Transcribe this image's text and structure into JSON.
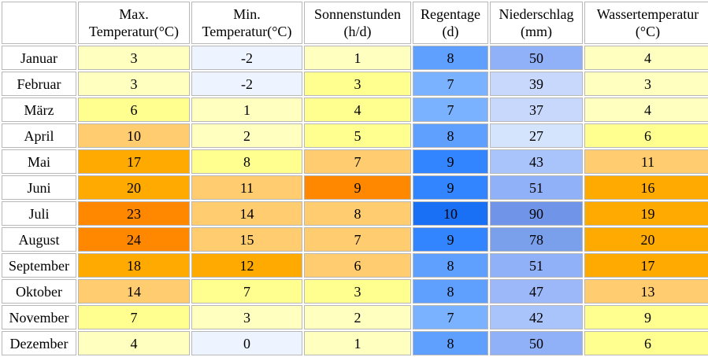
{
  "columns": [
    {
      "line1": "Max.",
      "line2": "Temperatur(°C)"
    },
    {
      "line1": "Min.",
      "line2": "Temperatur(°C)"
    },
    {
      "line1": "Sonnenstunden",
      "line2": "(h/d)"
    },
    {
      "line1": "Regentage",
      "line2": "(d)"
    },
    {
      "line1": "Niederschlag",
      "line2": "(mm)"
    },
    {
      "line1": "Wassertemperatur",
      "line2": "(°C)"
    }
  ],
  "rows": [
    {
      "month": "Januar",
      "values": [
        "3",
        "-2",
        "1",
        "8",
        "50",
        "4"
      ],
      "colors": [
        "#ffffc0",
        "#eef4ff",
        "#ffffc0",
        "#5fa0ff",
        "#90b0f8",
        "#ffffc0"
      ]
    },
    {
      "month": "Februar",
      "values": [
        "3",
        "-2",
        "3",
        "7",
        "39",
        "3"
      ],
      "colors": [
        "#ffffc0",
        "#eef4ff",
        "#ffff90",
        "#7ab2ff",
        "#c8d8fc",
        "#ffffc0"
      ]
    },
    {
      "month": "März",
      "values": [
        "6",
        "1",
        "4",
        "7",
        "37",
        "4"
      ],
      "colors": [
        "#ffff90",
        "#ffffc0",
        "#ffff90",
        "#7ab2ff",
        "#c8d8fc",
        "#ffffc0"
      ]
    },
    {
      "month": "April",
      "values": [
        "10",
        "2",
        "5",
        "8",
        "27",
        "6"
      ],
      "colors": [
        "#ffcc70",
        "#ffffc0",
        "#ffff90",
        "#5fa0ff",
        "#d4e4fc",
        "#ffff90"
      ]
    },
    {
      "month": "Mai",
      "values": [
        "17",
        "8",
        "7",
        "9",
        "43",
        "11"
      ],
      "colors": [
        "#ffaa00",
        "#ffff90",
        "#ffcc70",
        "#3385ff",
        "#a8c4fa",
        "#ffcc70"
      ]
    },
    {
      "month": "Juni",
      "values": [
        "20",
        "11",
        "9",
        "9",
        "51",
        "16"
      ],
      "colors": [
        "#ffaa00",
        "#ffcc70",
        "#ff8800",
        "#3385ff",
        "#90b0f8",
        "#ffaa00"
      ]
    },
    {
      "month": "Juli",
      "values": [
        "23",
        "14",
        "8",
        "10",
        "90",
        "19"
      ],
      "colors": [
        "#ff8800",
        "#ffcc70",
        "#ffcc70",
        "#1a70f5",
        "#6f94e8",
        "#ffaa00"
      ]
    },
    {
      "month": "August",
      "values": [
        "24",
        "15",
        "7",
        "9",
        "78",
        "20"
      ],
      "colors": [
        "#ff8800",
        "#ffcc70",
        "#ffcc70",
        "#3385ff",
        "#7aa0ec",
        "#ffaa00"
      ]
    },
    {
      "month": "September",
      "values": [
        "18",
        "12",
        "6",
        "8",
        "51",
        "17"
      ],
      "colors": [
        "#ffaa00",
        "#ffaa00",
        "#ffcc70",
        "#5fa0ff",
        "#90b0f8",
        "#ffaa00"
      ]
    },
    {
      "month": "Oktober",
      "values": [
        "14",
        "7",
        "3",
        "8",
        "47",
        "13"
      ],
      "colors": [
        "#ffcc70",
        "#ffff90",
        "#ffff90",
        "#5fa0ff",
        "#9cb8f9",
        "#ffcc70"
      ]
    },
    {
      "month": "November",
      "values": [
        "7",
        "3",
        "2",
        "7",
        "42",
        "9"
      ],
      "colors": [
        "#ffff90",
        "#ffffc0",
        "#ffffc0",
        "#7ab2ff",
        "#a8c4fa",
        "#ffff90"
      ]
    },
    {
      "month": "Dezember",
      "values": [
        "4",
        "0",
        "1",
        "8",
        "50",
        "6"
      ],
      "colors": [
        "#ffffc0",
        "#eef4ff",
        "#ffffc0",
        "#5fa0ff",
        "#90b0f8",
        "#ffff90"
      ]
    }
  ]
}
